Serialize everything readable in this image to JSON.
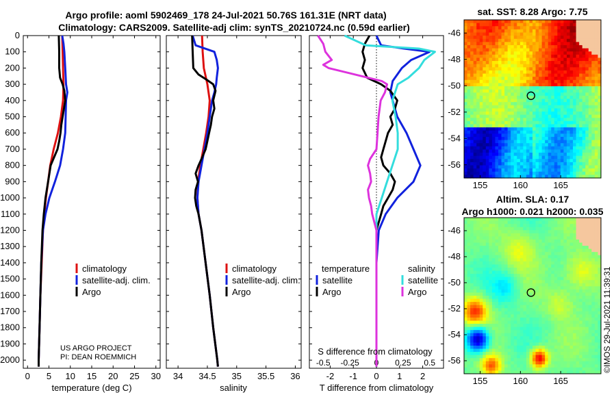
{
  "header": {
    "title_line1": "Argo profile: aoml 5902469_178 24-Jul-2021 50.76S 161.31E (NRT data)",
    "title_line2": "Climatology: CARS2009. Satellite-adj clim: synTS_20210724.nc (0.59d earlier)"
  },
  "depth_ticks": [
    "0",
    "100",
    "200",
    "300",
    "400",
    "500",
    "600",
    "700",
    "800",
    "900",
    "1000",
    "1100",
    "1200",
    "1300",
    "1400",
    "1500",
    "1600",
    "1700",
    "1800",
    "1900",
    "2000"
  ],
  "colors": {
    "climatology": "#dd1111",
    "satellite": "#1122dd",
    "argo": "#000000",
    "sal_satellite": "#33dddd",
    "sal_argo": "#dd33dd"
  },
  "chart_data": [
    {
      "type": "line",
      "name": "temperature",
      "xlabel": "temperature (deg C)",
      "ylabel": "depth",
      "xlim": [
        -1,
        31
      ],
      "ylim": [
        2050,
        0
      ],
      "xticks": [
        "0",
        "5",
        "10",
        "15",
        "20",
        "25",
        "30"
      ],
      "legend": [
        "climatology",
        "satellite-adj. clim.",
        "Argo"
      ],
      "notes": [
        "US ARGO PROJECT",
        "PI: DEAN ROEMMICH"
      ],
      "series": [
        {
          "name": "climatology",
          "depth": [
            0,
            100,
            200,
            300,
            400,
            500,
            600,
            700,
            800,
            900,
            1000,
            1100,
            1200,
            1400,
            1600,
            1800,
            2000,
            2040
          ],
          "values": [
            8.1,
            8.2,
            8.3,
            8.4,
            8.3,
            7.8,
            7.1,
            6.1,
            5.3,
            4.8,
            4.3,
            3.9,
            3.6,
            3.3,
            3.0,
            2.8,
            2.6,
            2.6
          ]
        },
        {
          "name": "satellite-adj. clim.",
          "depth": [
            0,
            50,
            100,
            200,
            300,
            350,
            400,
            500,
            600,
            700,
            800,
            900,
            1000,
            1100,
            1200,
            1400,
            1600,
            1800,
            2000,
            2040
          ],
          "values": [
            8.1,
            8.4,
            8.6,
            8.8,
            9.0,
            9.3,
            9.0,
            8.9,
            8.8,
            8.3,
            7.6,
            6.4,
            5.1,
            4.2,
            3.6,
            3.2,
            3.0,
            2.8,
            2.6,
            2.6
          ]
        },
        {
          "name": "Argo",
          "depth": [
            0,
            100,
            200,
            260,
            300,
            340,
            400,
            450,
            500,
            550,
            600,
            650,
            700,
            750,
            800,
            900,
            1000,
            1100,
            1200,
            1400,
            1600,
            1800,
            2000,
            2040
          ],
          "values": [
            7.3,
            7.4,
            7.4,
            7.6,
            8.2,
            8.6,
            8.8,
            8.5,
            8.2,
            7.9,
            7.7,
            7.4,
            7.0,
            6.2,
            5.4,
            4.8,
            4.2,
            3.8,
            3.5,
            3.2,
            3.0,
            2.8,
            2.6,
            2.6
          ]
        }
      ]
    },
    {
      "type": "line",
      "name": "salinity",
      "xlabel": "salinity",
      "xlim": [
        33.8,
        36.1
      ],
      "ylim": [
        2050,
        0
      ],
      "xticks": [
        "34",
        "34.5",
        "35",
        "35.5",
        "36"
      ],
      "legend": [
        "climatology",
        "satellite-adj. clim.",
        "Argo"
      ],
      "series": [
        {
          "name": "climatology",
          "depth": [
            0,
            100,
            200,
            300,
            400,
            500,
            600,
            700,
            800,
            900,
            1000,
            1100,
            1200,
            1400,
            1600,
            1800,
            2000,
            2040
          ],
          "values": [
            34.41,
            34.42,
            34.44,
            34.5,
            34.54,
            34.52,
            34.48,
            34.43,
            34.38,
            34.34,
            34.33,
            34.35,
            34.4,
            34.47,
            34.54,
            34.6,
            34.67,
            34.68
          ]
        },
        {
          "name": "satellite-adj. clim.",
          "depth": [
            0,
            60,
            100,
            150,
            200,
            260,
            300,
            350,
            400,
            500,
            600,
            700,
            800,
            900,
            1000,
            1100,
            1200,
            1400,
            1600,
            1800,
            2000,
            2040
          ],
          "values": [
            34.25,
            34.3,
            34.62,
            34.66,
            34.68,
            34.66,
            34.65,
            34.62,
            34.58,
            34.54,
            34.5,
            34.45,
            34.4,
            34.35,
            34.33,
            34.35,
            34.4,
            34.47,
            34.54,
            34.6,
            34.67,
            34.68
          ]
        },
        {
          "name": "Argo",
          "depth": [
            0,
            100,
            200,
            240,
            270,
            300,
            340,
            400,
            450,
            500,
            550,
            600,
            650,
            700,
            760,
            800,
            850,
            900,
            950,
            1000,
            1050,
            1100,
            1200,
            1400,
            1600,
            1800,
            2000,
            2040
          ],
          "values": [
            34.24,
            34.25,
            34.26,
            34.35,
            34.48,
            34.6,
            34.64,
            34.6,
            34.62,
            34.58,
            34.56,
            34.53,
            34.5,
            34.47,
            34.4,
            34.35,
            34.3,
            34.34,
            34.3,
            34.29,
            34.31,
            34.35,
            34.4,
            34.47,
            34.54,
            34.6,
            34.67,
            34.68
          ]
        }
      ]
    },
    {
      "type": "line",
      "name": "difference from climatology",
      "xlabel": "T difference from climatology",
      "xlabel2": "S difference from climatology",
      "xlim": [
        -2.9,
        2.9
      ],
      "ylim": [
        2050,
        0
      ],
      "xticks": [
        "-2",
        "-1",
        "0",
        "1",
        "2"
      ],
      "xticks2": [
        "-0.5",
        "-0.25",
        "0",
        "0.25",
        "0.5"
      ],
      "legend_left_title": "temperature",
      "legend_right_title": "salinity",
      "legend_left": [
        "satellite",
        "Argo"
      ],
      "legend_right": [
        "satellite",
        "Argo"
      ],
      "series": [
        {
          "name": "temperature satellite",
          "depth": [
            0,
            60,
            80,
            100,
            150,
            200,
            280,
            350,
            400,
            500,
            600,
            700,
            800,
            900,
            1000,
            1100,
            1200,
            1400,
            1600,
            1800,
            2000,
            2040
          ],
          "values": [
            0.0,
            0.2,
            1.2,
            2.3,
            1.5,
            1.1,
            0.7,
            0.6,
            0.7,
            0.9,
            1.3,
            1.6,
            1.9,
            1.6,
            0.9,
            0.4,
            0.1,
            0.0,
            0.0,
            0.0,
            0.0,
            0.0
          ]
        },
        {
          "name": "temperature Argo",
          "depth": [
            0,
            50,
            100,
            150,
            200,
            260,
            300,
            340,
            400,
            450,
            500,
            550,
            600,
            650,
            700,
            750,
            800,
            850,
            900,
            950,
            1000,
            1050,
            1100,
            1150,
            1200,
            1400,
            1600,
            1800,
            2000,
            2040
          ],
          "values": [
            -0.3,
            -0.5,
            -0.6,
            -0.5,
            -0.6,
            -0.4,
            0.2,
            0.6,
            0.9,
            0.8,
            0.6,
            0.7,
            0.5,
            0.4,
            0.3,
            0.2,
            0.3,
            0.6,
            0.8,
            0.7,
            0.5,
            0.3,
            0.2,
            0.1,
            0.0,
            0.0,
            0.0,
            0.0,
            0.0,
            0.0
          ]
        },
        {
          "name": "salinity satellite",
          "depth": [
            0,
            60,
            80,
            100,
            150,
            200,
            260,
            300,
            400,
            500,
            600,
            700,
            800,
            900,
            1000,
            1100,
            1200,
            1400,
            1600,
            1800,
            2000,
            2040
          ],
          "values": [
            -0.3,
            -0.1,
            0.4,
            0.55,
            0.45,
            0.4,
            0.3,
            0.2,
            0.15,
            0.18,
            0.2,
            0.2,
            0.15,
            0.1,
            0.05,
            0.0,
            0.0,
            0.0,
            0.0,
            0.0,
            0.0,
            0.0
          ]
        },
        {
          "name": "salinity Argo",
          "depth": [
            0,
            50,
            100,
            150,
            180,
            200,
            240,
            280,
            300,
            350,
            400,
            500,
            600,
            700,
            760,
            800,
            850,
            900,
            950,
            1000,
            1050,
            1100,
            1200,
            1400,
            1600,
            1800,
            2000,
            2040
          ],
          "values": [
            -0.55,
            -0.5,
            -0.48,
            -0.42,
            -0.5,
            -0.45,
            -0.2,
            0.05,
            0.1,
            0.08,
            0.04,
            0.02,
            0.01,
            0.0,
            -0.06,
            -0.08,
            -0.06,
            -0.05,
            -0.08,
            -0.07,
            -0.05,
            -0.04,
            0.0,
            0.0,
            0.0,
            0.0,
            0.0,
            0.0
          ]
        }
      ]
    },
    {
      "type": "heatmap",
      "name": "satellite SST map",
      "title": "sat. SST: 8.28 Argo: 7.75",
      "xticks": [
        "155",
        "160",
        "165"
      ],
      "yticks": [
        "-46",
        "-48",
        "-50",
        "-52",
        "-54",
        "-56"
      ],
      "xlim": [
        153,
        170
      ],
      "ylim": [
        -57,
        -45
      ],
      "argo_marker": {
        "lon": 161.31,
        "lat": -50.76
      }
    },
    {
      "type": "heatmap",
      "name": "altimetry SLA map",
      "title": "Altim. SLA: 0.17",
      "subtitle": "Argo h1000: 0.021 h2000: 0.035",
      "xticks": [
        "155",
        "160",
        "165"
      ],
      "yticks": [
        "-46",
        "-48",
        "-50",
        "-52",
        "-54",
        "-56"
      ],
      "xlim": [
        153,
        170
      ],
      "ylim": [
        -57,
        -45
      ],
      "argo_marker": {
        "lon": 161.31,
        "lat": -50.76
      }
    }
  ],
  "stamp": "©IMOS 29-Jul-2021 11:39:31"
}
